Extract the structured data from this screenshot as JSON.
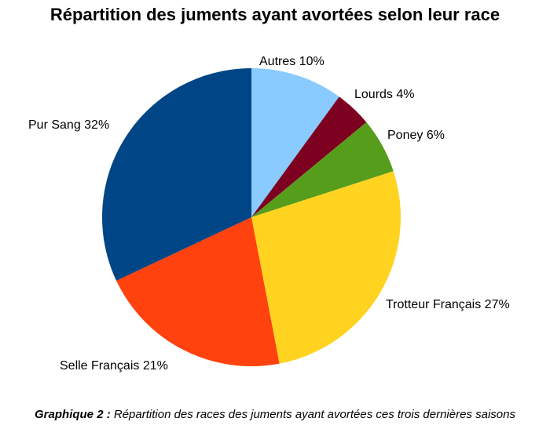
{
  "chart_data": {
    "type": "pie",
    "title": "Répartition des juments ayant avortées selon leur race",
    "unit": "%",
    "slices": [
      {
        "label": "Autres",
        "value": 10,
        "color": "#89CBFF"
      },
      {
        "label": "Lourds",
        "value": 4,
        "color": "#7E0021"
      },
      {
        "label": "Poney",
        "value": 6,
        "color": "#579D1C"
      },
      {
        "label": "Trotteur Français",
        "value": 27,
        "color": "#FFD320"
      },
      {
        "label": "Selle Français",
        "value": 21,
        "color": "#FF420E"
      },
      {
        "label": "Pur Sang",
        "value": 32,
        "color": "#004586"
      }
    ],
    "slice_labels": [
      "Autres 10%",
      "Lourds 4%",
      "Poney 6%",
      "Trotteur Français 27%",
      "Selle Français 21%",
      "Pur Sang 32%"
    ],
    "start_angle": "top (12 o'clock)",
    "direction": "clockwise",
    "legend": "none"
  },
  "caption": {
    "prefix": "Graphique 2 :",
    "text": "Répartition des races des juments ayant avortées ces trois dernières saisons"
  }
}
